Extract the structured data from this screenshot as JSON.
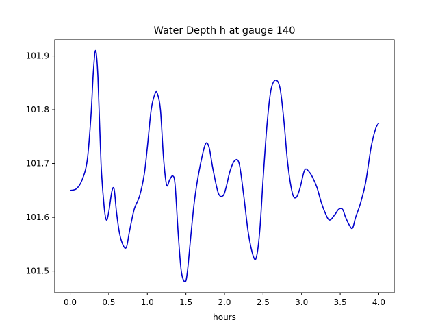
{
  "chart_data": {
    "type": "line",
    "title": "Water Depth h at gauge 140",
    "xlabel": "hours",
    "ylabel": "",
    "xlim": [
      -0.2,
      4.2
    ],
    "ylim": [
      101.46,
      101.93
    ],
    "xticks": [
      0.0,
      0.5,
      1.0,
      1.5,
      2.0,
      2.5,
      3.0,
      3.5,
      4.0
    ],
    "xtick_labels": [
      "0.0",
      "0.5",
      "1.0",
      "1.5",
      "2.0",
      "2.5",
      "3.0",
      "3.5",
      "4.0"
    ],
    "yticks": [
      101.5,
      101.6,
      101.7,
      101.8,
      101.9
    ],
    "ytick_labels": [
      "101.5",
      "101.6",
      "101.7",
      "101.8",
      "101.9"
    ],
    "grid": false,
    "series": [
      {
        "color": "#0000cc",
        "x": [
          0.0,
          0.08,
          0.15,
          0.22,
          0.27,
          0.3,
          0.33,
          0.36,
          0.4,
          0.44,
          0.47,
          0.5,
          0.54,
          0.57,
          0.6,
          0.64,
          0.69,
          0.73,
          0.77,
          0.83,
          0.9,
          0.96,
          1.0,
          1.05,
          1.1,
          1.13,
          1.17,
          1.21,
          1.25,
          1.29,
          1.33,
          1.36,
          1.4,
          1.44,
          1.49,
          1.52,
          1.56,
          1.61,
          1.67,
          1.75,
          1.8,
          1.85,
          1.92,
          1.98,
          2.02,
          2.07,
          2.13,
          2.19,
          2.25,
          2.31,
          2.38,
          2.42,
          2.46,
          2.5,
          2.55,
          2.6,
          2.66,
          2.72,
          2.77,
          2.82,
          2.88,
          2.93,
          2.98,
          3.04,
          3.1,
          3.15,
          3.2,
          3.25,
          3.3,
          3.36,
          3.43,
          3.48,
          3.53,
          3.57,
          3.62,
          3.66,
          3.7,
          3.76,
          3.83,
          3.9,
          3.96,
          4.0
        ],
        "y": [
          101.65,
          101.653,
          101.668,
          101.705,
          101.79,
          101.87,
          101.91,
          101.86,
          101.7,
          101.62,
          101.595,
          101.61,
          101.648,
          101.652,
          101.61,
          101.57,
          101.547,
          101.545,
          101.575,
          101.615,
          101.64,
          101.68,
          101.73,
          101.8,
          101.83,
          101.83,
          101.8,
          101.71,
          101.66,
          101.67,
          101.677,
          101.66,
          101.57,
          101.5,
          101.48,
          101.5,
          101.56,
          101.63,
          101.685,
          101.735,
          101.73,
          101.69,
          101.645,
          101.64,
          101.655,
          101.685,
          101.705,
          101.7,
          101.64,
          101.57,
          101.525,
          101.53,
          101.58,
          101.67,
          101.77,
          101.835,
          101.855,
          101.84,
          101.78,
          101.7,
          101.645,
          101.637,
          101.655,
          101.688,
          101.684,
          101.672,
          101.655,
          101.63,
          101.61,
          101.595,
          101.605,
          101.615,
          101.615,
          101.6,
          101.585,
          101.58,
          101.6,
          101.625,
          101.665,
          101.73,
          101.765,
          101.775
        ]
      }
    ]
  }
}
